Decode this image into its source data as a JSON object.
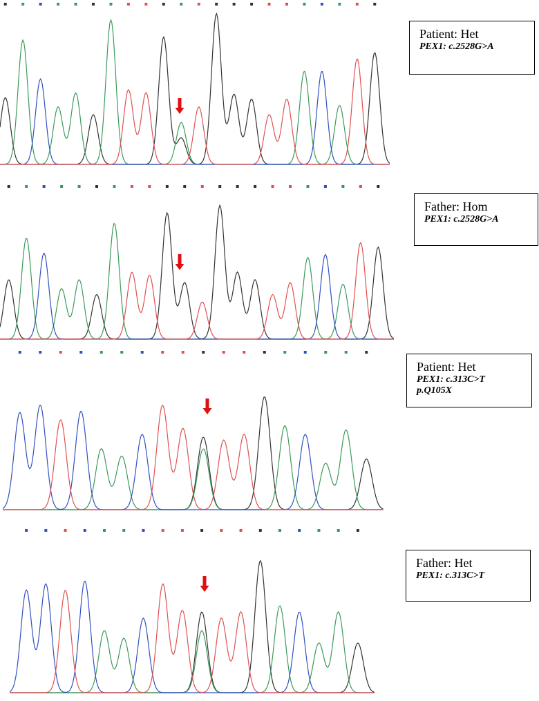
{
  "panels": [
    {
      "label": "Patient: Het",
      "variant": [
        "PEX1: c.2528G>A"
      ]
    },
    {
      "label": "Father: Hom",
      "variant": [
        "PEX1: c.2528G>A"
      ]
    },
    {
      "label": "Patient: Het",
      "variant": [
        "PEX1: c.313C>T",
        "p.Q105X"
      ]
    },
    {
      "label": "Father: Het",
      "variant": [
        "PEX1: c.313C>T"
      ]
    }
  ]
}
